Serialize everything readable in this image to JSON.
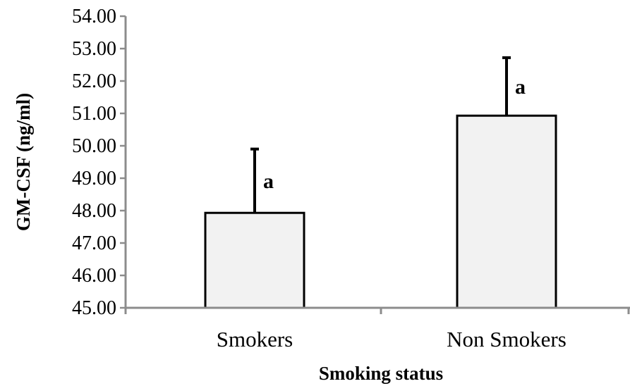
{
  "chart_data": {
    "type": "bar",
    "categories": [
      "Smokers",
      "Non Smokers"
    ],
    "values": [
      47.93,
      50.93
    ],
    "error_upper": [
      1.97,
      1.79
    ],
    "significance_labels": [
      "a",
      "a"
    ],
    "xlabel": "Smoking status",
    "ylabel": "GM-CSF (ng/ml)",
    "ylim": [
      45.0,
      54.0
    ],
    "ytick_step": 1.0,
    "ytick_labels": [
      "45.00",
      "46.00",
      "47.00",
      "48.00",
      "49.00",
      "50.00",
      "51.00",
      "52.00",
      "53.00",
      "54.00"
    ],
    "grid": false,
    "legend": "none",
    "colors": {
      "bar_fill": "#f2f2f2",
      "bar_stroke": "#000000",
      "axis": "#8c8c8c"
    }
  }
}
